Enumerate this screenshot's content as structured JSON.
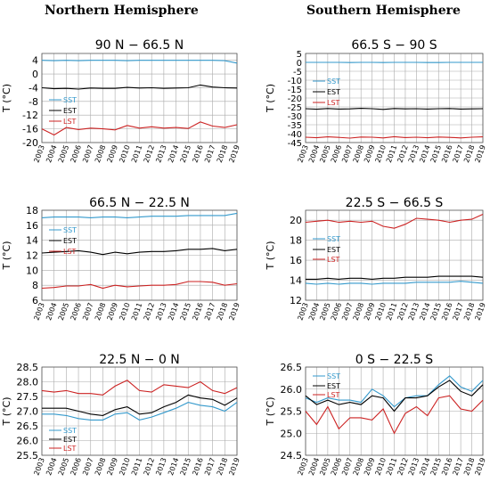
{
  "headers": {
    "left": "Northern Hemisphere",
    "right": "Southern Hemisphere"
  },
  "colors": {
    "sst": "#3399cc",
    "est": "#000000",
    "lst": "#cc2222",
    "grid": "#aaaaaa"
  },
  "chart_data": [
    {
      "type": "line",
      "title": "90 N − 66.5 N",
      "ylabel": "T (°C)",
      "xlabel": "",
      "ylim": [
        -20,
        6
      ],
      "yticks": [
        4,
        0,
        -4,
        -8,
        -12,
        -16,
        -20
      ],
      "grid": true,
      "legend": "left",
      "x": [
        "2003",
        "2004",
        "2005",
        "2006",
        "2007",
        "2008",
        "2009",
        "2010",
        "2011",
        "2012",
        "2013",
        "2014",
        "2015",
        "2016",
        "2017",
        "2018",
        "2019"
      ],
      "series": [
        {
          "name": "SST",
          "color": "sst",
          "values": [
            4.0,
            3.9,
            4.0,
            3.9,
            4.0,
            4.0,
            4.0,
            3.9,
            4.0,
            4.0,
            4.0,
            4.0,
            4.0,
            4.0,
            4.0,
            3.9,
            3.2
          ]
        },
        {
          "name": "EST",
          "color": "est",
          "values": [
            -4.0,
            -4.3,
            -4.2,
            -4.4,
            -4.1,
            -4.2,
            -4.2,
            -3.9,
            -4.1,
            -4.0,
            -4.2,
            -4.1,
            -4.0,
            -3.2,
            -3.8,
            -4.0,
            -4.1
          ]
        },
        {
          "name": "LST",
          "color": "lst",
          "values": [
            -16.0,
            -17.8,
            -15.6,
            -16.2,
            -15.8,
            -16.0,
            -16.3,
            -15.0,
            -15.8,
            -15.4,
            -15.8,
            -15.6,
            -15.9,
            -14.0,
            -15.2,
            -15.6,
            -14.8
          ]
        }
      ]
    },
    {
      "type": "line",
      "title": "66.5 S − 90 S",
      "ylabel": "T (°C)",
      "xlabel": "",
      "ylim": [
        -45,
        5
      ],
      "yticks": [
        5,
        0,
        -5,
        -10,
        -15,
        -20,
        -25,
        -30,
        -35,
        -40,
        -45
      ],
      "grid": true,
      "legend": "left",
      "x": [
        "2003",
        "2004",
        "2005",
        "2006",
        "2007",
        "2008",
        "2009",
        "2010",
        "2011",
        "2012",
        "2013",
        "2014",
        "2015",
        "2016",
        "2017",
        "2018",
        "2019"
      ],
      "series": [
        {
          "name": "SST",
          "color": "sst",
          "values": [
            0.0,
            0.0,
            0.0,
            0.0,
            -0.1,
            0.0,
            0.0,
            -0.1,
            0.0,
            0.0,
            0.0,
            -0.1,
            -0.1,
            0.0,
            0.0,
            0.0,
            0.0
          ]
        },
        {
          "name": "EST",
          "color": "est",
          "values": [
            -26.0,
            -26.3,
            -25.9,
            -26.2,
            -26.1,
            -25.8,
            -26.0,
            -26.4,
            -25.9,
            -26.1,
            -26.0,
            -26.2,
            -26.0,
            -25.9,
            -26.2,
            -26.1,
            -26.0
          ]
        },
        {
          "name": "LST",
          "color": "lst",
          "values": [
            -42.0,
            -42.3,
            -41.8,
            -42.1,
            -42.5,
            -41.9,
            -42.0,
            -42.4,
            -41.7,
            -42.2,
            -42.0,
            -42.3,
            -41.9,
            -42.1,
            -42.4,
            -42.0,
            -41.8
          ]
        }
      ]
    },
    {
      "type": "line",
      "title": "66.5 N − 22.5 N",
      "ylabel": "T (°C)",
      "xlabel": "",
      "ylim": [
        6,
        18
      ],
      "yticks": [
        18,
        16,
        14,
        12,
        10,
        8,
        6
      ],
      "grid": true,
      "legend": "left",
      "x": [
        "2003",
        "2004",
        "2005",
        "2006",
        "2007",
        "2008",
        "2009",
        "2010",
        "2011",
        "2012",
        "2013",
        "2014",
        "2015",
        "2016",
        "2017",
        "2018",
        "2019"
      ],
      "series": [
        {
          "name": "SST",
          "color": "sst",
          "values": [
            17.0,
            17.1,
            17.1,
            17.1,
            17.0,
            17.1,
            17.1,
            17.0,
            17.1,
            17.2,
            17.2,
            17.2,
            17.3,
            17.3,
            17.3,
            17.3,
            17.6
          ]
        },
        {
          "name": "EST",
          "color": "est",
          "values": [
            12.3,
            12.4,
            12.5,
            12.6,
            12.4,
            12.1,
            12.4,
            12.2,
            12.4,
            12.5,
            12.5,
            12.6,
            12.8,
            12.8,
            12.9,
            12.6,
            12.8
          ]
        },
        {
          "name": "LST",
          "color": "lst",
          "values": [
            7.6,
            7.7,
            7.9,
            7.9,
            8.1,
            7.6,
            8.0,
            7.8,
            7.9,
            8.0,
            8.0,
            8.1,
            8.5,
            8.5,
            8.4,
            8.0,
            8.2
          ]
        }
      ]
    },
    {
      "type": "line",
      "title": "22.5 S − 66.5 S",
      "ylabel": "T (°C)",
      "xlabel": "",
      "ylim": [
        12,
        21
      ],
      "yticks": [
        20,
        18,
        16,
        14,
        12
      ],
      "grid": true,
      "legend": "left",
      "x": [
        "2003",
        "2004",
        "2005",
        "2006",
        "2007",
        "2008",
        "2009",
        "2010",
        "2011",
        "2012",
        "2013",
        "2014",
        "2015",
        "2016",
        "2017",
        "2018",
        "2019"
      ],
      "series": [
        {
          "name": "SST",
          "color": "sst",
          "values": [
            13.7,
            13.6,
            13.7,
            13.6,
            13.7,
            13.7,
            13.6,
            13.7,
            13.7,
            13.7,
            13.8,
            13.8,
            13.8,
            13.8,
            13.9,
            13.8,
            13.7
          ]
        },
        {
          "name": "EST",
          "color": "est",
          "values": [
            14.1,
            14.1,
            14.2,
            14.1,
            14.2,
            14.2,
            14.1,
            14.2,
            14.2,
            14.3,
            14.3,
            14.3,
            14.4,
            14.4,
            14.4,
            14.4,
            14.3
          ]
        },
        {
          "name": "LST",
          "color": "lst",
          "values": [
            19.8,
            19.9,
            20.0,
            19.8,
            19.9,
            19.8,
            19.9,
            19.4,
            19.2,
            19.6,
            20.2,
            20.1,
            20.0,
            19.8,
            20.0,
            20.1,
            20.6
          ]
        }
      ]
    },
    {
      "type": "line",
      "title": "22.5 N − 0 N",
      "ylabel": "T (°C)",
      "xlabel": "",
      "ylim": [
        25.5,
        28.5
      ],
      "yticks": [
        28.5,
        28.0,
        27.5,
        27.0,
        26.5,
        26.0,
        25.5
      ],
      "grid": true,
      "legend": "left",
      "x": [
        "2003",
        "2004",
        "2005",
        "2006",
        "2007",
        "2008",
        "2009",
        "2010",
        "2011",
        "2012",
        "2013",
        "2014",
        "2015",
        "2016",
        "2017",
        "2018",
        "2019"
      ],
      "series": [
        {
          "name": "SST",
          "color": "sst",
          "values": [
            26.9,
            26.9,
            26.85,
            26.75,
            26.7,
            26.7,
            26.9,
            26.95,
            26.7,
            26.8,
            26.95,
            27.1,
            27.3,
            27.2,
            27.15,
            27.0,
            27.3
          ]
        },
        {
          "name": "EST",
          "color": "est",
          "values": [
            27.1,
            27.1,
            27.1,
            27.0,
            26.9,
            26.85,
            27.05,
            27.15,
            26.9,
            26.95,
            27.15,
            27.3,
            27.55,
            27.45,
            27.4,
            27.2,
            27.45
          ]
        },
        {
          "name": "LST",
          "color": "lst",
          "values": [
            27.7,
            27.65,
            27.7,
            27.6,
            27.6,
            27.55,
            27.85,
            28.05,
            27.7,
            27.65,
            27.9,
            27.85,
            27.8,
            28.0,
            27.7,
            27.6,
            27.8
          ]
        }
      ]
    },
    {
      "type": "line",
      "title": "0 S − 22.5 S",
      "ylabel": "T (°C)",
      "xlabel": "",
      "ylim": [
        24.5,
        26.5
      ],
      "yticks": [
        26.5,
        26.0,
        25.5,
        25.0,
        24.5
      ],
      "grid": true,
      "legend": "top-left",
      "x": [
        "2003",
        "2004",
        "2005",
        "2006",
        "2007",
        "2008",
        "2009",
        "2010",
        "2011",
        "2012",
        "2013",
        "2014",
        "2015",
        "2016",
        "2017",
        "2018",
        "2019"
      ],
      "series": [
        {
          "name": "SST",
          "color": "sst",
          "values": [
            25.8,
            25.7,
            25.8,
            25.75,
            25.75,
            25.7,
            26.0,
            25.85,
            25.6,
            25.8,
            25.85,
            25.85,
            26.1,
            26.3,
            26.05,
            25.95,
            26.2
          ]
        },
        {
          "name": "EST",
          "color": "est",
          "values": [
            25.85,
            25.65,
            25.75,
            25.65,
            25.7,
            25.65,
            25.85,
            25.8,
            25.5,
            25.8,
            25.8,
            25.85,
            26.05,
            26.2,
            25.95,
            25.85,
            26.1
          ]
        },
        {
          "name": "LST",
          "color": "lst",
          "values": [
            25.5,
            25.2,
            25.6,
            25.1,
            25.35,
            25.35,
            25.3,
            25.55,
            25.0,
            25.45,
            25.6,
            25.4,
            25.8,
            25.85,
            25.55,
            25.5,
            25.75
          ]
        }
      ]
    }
  ]
}
